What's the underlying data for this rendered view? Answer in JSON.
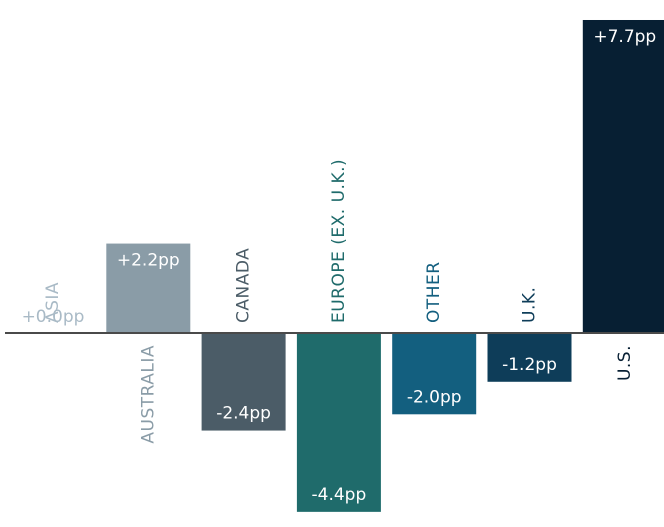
{
  "chart_data": {
    "type": "bar",
    "title": "",
    "xlabel": "",
    "ylabel": "",
    "ylim": [
      -4.6,
      7.8
    ],
    "grid": false,
    "legend": "none",
    "categories": [
      "ASIA",
      "AUSTRALIA",
      "CANADA",
      "EUROPE (EX. U.K.)",
      "OTHER",
      "U.K.",
      "U.S."
    ],
    "values": [
      0.0,
      2.2,
      -2.4,
      -4.4,
      -2.0,
      -1.2,
      7.7
    ],
    "data_labels": [
      "+0.0pp",
      "+2.2pp",
      "-2.4pp",
      "-4.4pp",
      "-2.0pp",
      "-1.2pp",
      "+7.7pp"
    ],
    "colors": [
      "#a9bac6",
      "#8a9ca7",
      "#4b5c67",
      "#1f6b6b",
      "#135f7f",
      "#0e3d59",
      "#071f33"
    ],
    "baseline_color": "#4a4a4a"
  }
}
